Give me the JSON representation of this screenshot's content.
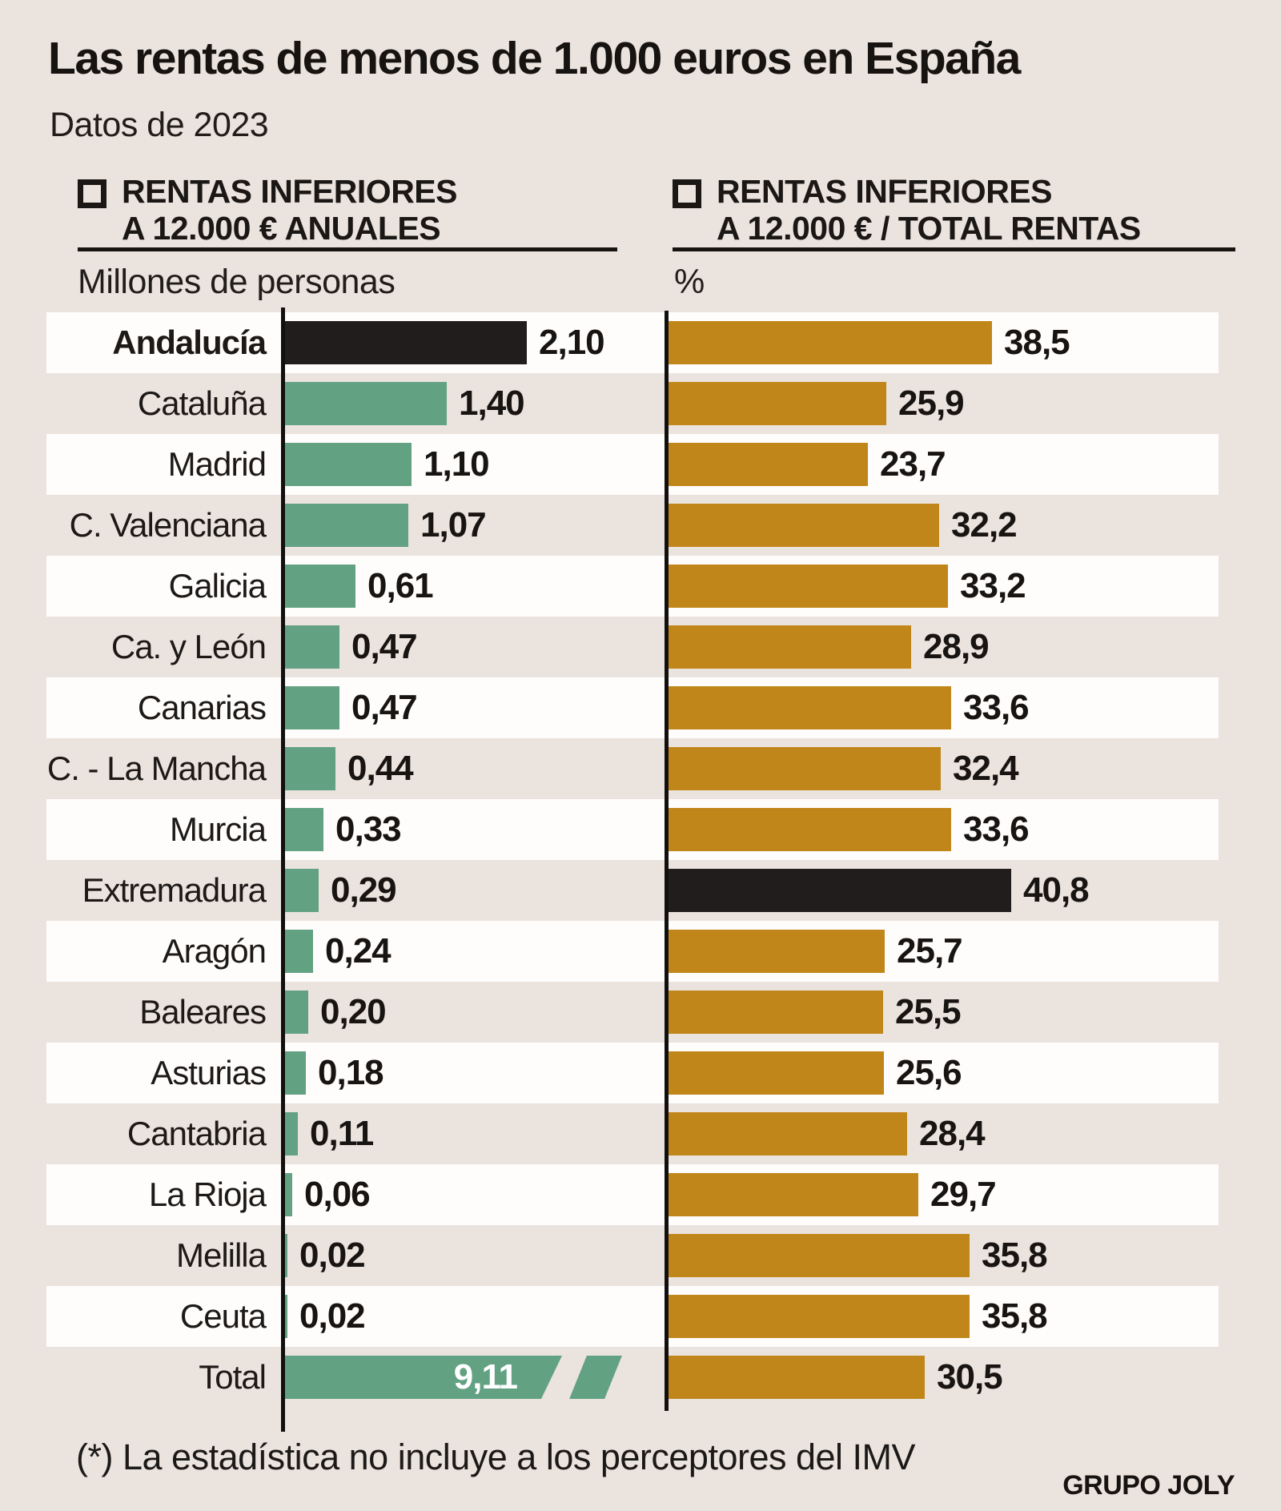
{
  "title": "Las rentas de menos de 1.000 euros en España",
  "subtitle": "Datos de 2023",
  "legend_left": {
    "line1": "RENTAS INFERIORES",
    "line2": "A 12.000 € ANUALES"
  },
  "legend_right": {
    "line1": "RENTAS INFERIORES",
    "line2": "A 12.000 € / TOTAL RENTAS"
  },
  "axis_left_unit": "Millones de personas",
  "axis_right_unit": "%",
  "footnote": "(*) La estadística no incluye a los perceptores del IMV",
  "credit": "GRUPO JOLY",
  "colors": {
    "background": "#ebe3de",
    "row_stripe": "#fffdfc",
    "green": "#63a183",
    "ochre": "#c1861a",
    "highlight_black": "#201d1c"
  },
  "chart_data": {
    "type": "bar",
    "orientation": "horizontal",
    "title": "Las rentas de menos de 1.000 euros en España",
    "subtitle": "Datos de 2023",
    "grid": false,
    "legend_position": "top",
    "categories": [
      "Andalucía",
      "Cataluña",
      "Madrid",
      "C. Valenciana",
      "Galicia",
      "Ca. y León",
      "Canarias",
      "C. - La Mancha",
      "Murcia",
      "Extremadura",
      "Aragón",
      "Baleares",
      "Asturias",
      "Cantabria",
      "La Rioja",
      "Melilla",
      "Ceuta",
      "Total"
    ],
    "series": [
      {
        "name": "RENTAS INFERIORES A 12.000 € ANUALES",
        "unit": "Millones de personas",
        "values": [
          2.1,
          1.4,
          1.1,
          1.07,
          0.61,
          0.47,
          0.47,
          0.44,
          0.33,
          0.29,
          0.24,
          0.2,
          0.18,
          0.11,
          0.06,
          0.02,
          0.02,
          9.11
        ],
        "labels": [
          "2,10",
          "1,40",
          "1,10",
          "1,07",
          "0,61",
          "0,47",
          "0,47",
          "0,44",
          "0,33",
          "0,29",
          "0,24",
          "0,20",
          "0,18",
          "0,11",
          "0,06",
          "0,02",
          "0,02",
          "9,11"
        ],
        "xlim": [
          0,
          2.2
        ]
      },
      {
        "name": "RENTAS INFERIORES A 12.000 € / TOTAL RENTAS",
        "unit": "%",
        "values": [
          38.5,
          25.9,
          23.7,
          32.2,
          33.2,
          28.9,
          33.6,
          32.4,
          33.6,
          40.8,
          25.7,
          25.5,
          25.6,
          28.4,
          29.7,
          35.8,
          35.8,
          30.5
        ],
        "labels": [
          "38,5",
          "25,9",
          "23,7",
          "32,2",
          "33,2",
          "28,9",
          "33,6",
          "32,4",
          "33,6",
          "40,8",
          "25,7",
          "25,5",
          "25,6",
          "28,4",
          "29,7",
          "35,8",
          "35,8",
          "30,5"
        ],
        "xlim": [
          0,
          42
        ]
      }
    ],
    "highlighted_black": {
      "series1": "Andalucía",
      "series2": "Extremadura"
    },
    "broken_bar_category": "Total"
  }
}
